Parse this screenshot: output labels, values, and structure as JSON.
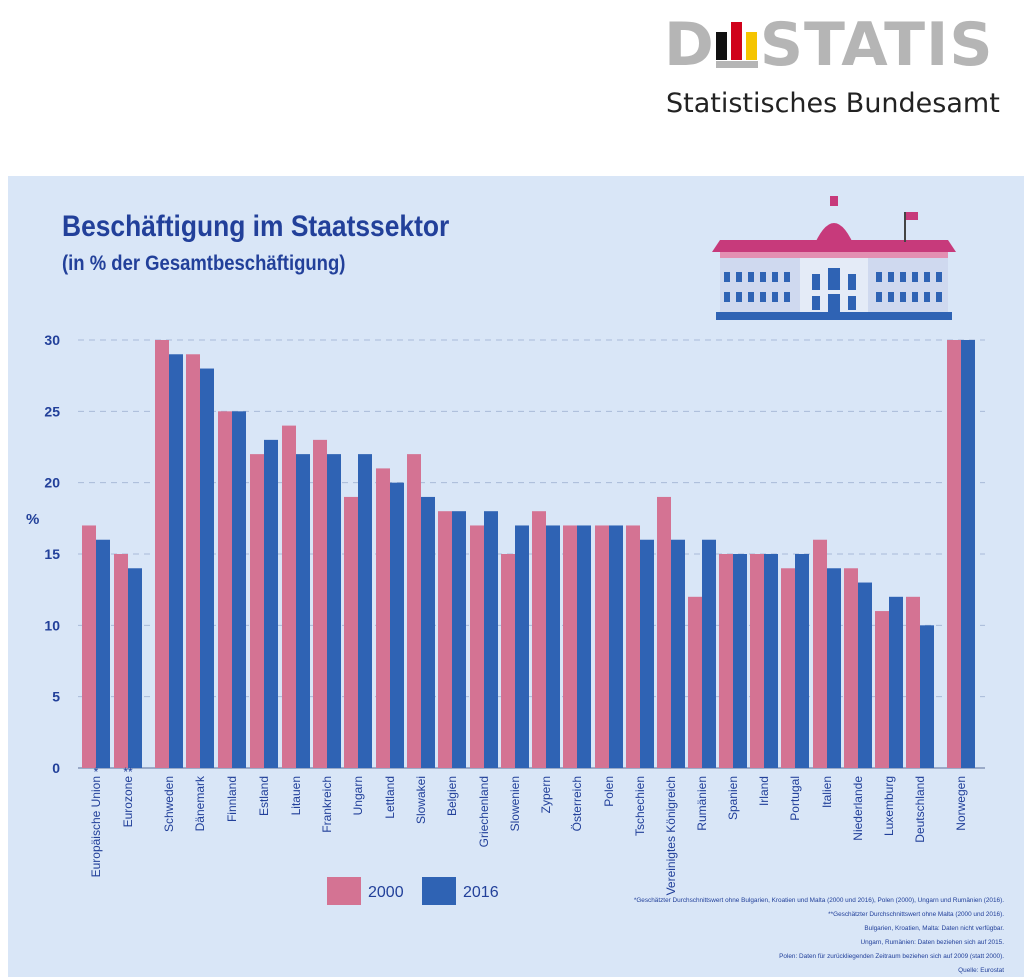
{
  "logo": {
    "wordmark_left": "D",
    "wordmark_right": "STATIS",
    "subtitle": "Statistisches Bundesamt",
    "flag_colors": [
      "#111111",
      "#d0021b",
      "#f5c400"
    ]
  },
  "colors": {
    "panel": "#d9e6f7",
    "series_2000": "#d47393",
    "series_2016": "#2f63b4",
    "text": "#22409a"
  },
  "illustration": "parliament-building-icon",
  "footnotes": [
    "*Geschätzter Durchschnittswert ohne Bulgarien, Kroatien und Malta (2000 und 2016), Polen (2000), Ungarn und Rumänien (2016).",
    "**Geschätzter Durchschnittswert ohne Malta (2000 und 2016).",
    "Bulgarien, Kroatien, Malta: Daten nicht verfügbar.",
    "Ungarn, Rumänien: Daten beziehen sich auf 2015.",
    "Polen: Daten für zurückliegenden Zeitraum beziehen sich auf 2009 (statt 2000).",
    "Quelle: Eurostat"
  ],
  "chart_data": {
    "type": "bar",
    "title": "Beschäftigung im Staatssektor",
    "subtitle": "(in % der Gesamtbeschäftigung)",
    "ylabel": "%",
    "ylim": [
      0,
      30
    ],
    "yticks": [
      0,
      5,
      10,
      15,
      20,
      25,
      30
    ],
    "grid": true,
    "legend_position": "bottom-center",
    "categories": [
      "Europäische Union",
      "Eurozone",
      "Schweden",
      "Dänemark",
      "Finnland",
      "Estland",
      "Litauen",
      "Frankreich",
      "Ungarn",
      "Lettland",
      "Slowakei",
      "Belgien",
      "Griechenland",
      "Slowenien",
      "Zypern",
      "Österreich",
      "Polen",
      "Tschechien",
      "Vereinigtes Königreich",
      "Rumänien",
      "Spanien",
      "Irland",
      "Portugal",
      "Italien",
      "Niederlande",
      "Luxemburg",
      "Deutschland",
      "Norwegen"
    ],
    "category_marks": [
      "*",
      "**",
      "",
      "",
      "",
      "",
      "",
      "",
      "",
      "",
      "",
      "",
      "",
      "",
      "",
      "",
      "",
      "",
      "",
      "",
      "",
      "",
      "",
      "",
      "",
      "",
      "",
      ""
    ],
    "series": [
      {
        "name": "2000",
        "values": [
          17,
          15,
          30,
          29,
          25,
          22,
          24,
          23,
          19,
          21,
          22,
          18,
          17,
          15,
          18,
          17,
          17,
          17,
          19,
          12,
          15,
          15,
          14,
          16,
          14,
          11,
          12,
          30
        ]
      },
      {
        "name": "2016",
        "values": [
          16,
          14,
          29,
          28,
          25,
          23,
          22,
          22,
          22,
          20,
          19,
          18,
          18,
          17,
          17,
          17,
          17,
          16,
          16,
          16,
          15,
          15,
          15,
          14,
          13,
          12,
          10,
          30
        ]
      }
    ]
  }
}
